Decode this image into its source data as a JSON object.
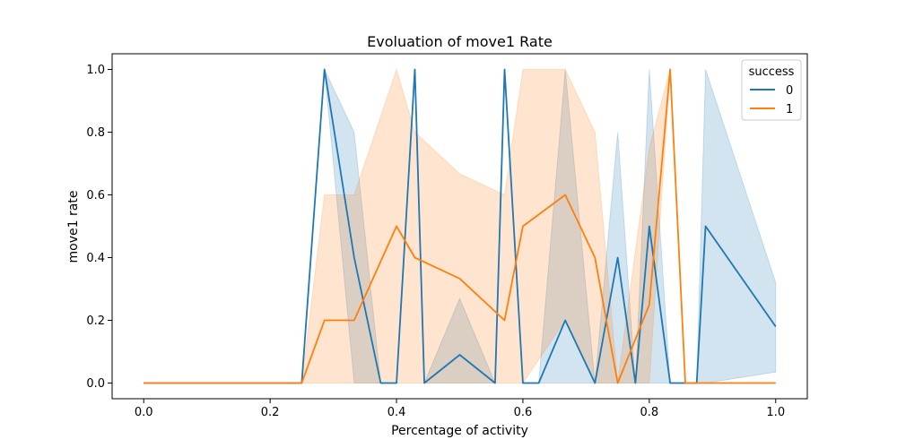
{
  "chart_data": {
    "type": "line",
    "title": "Evoluation of move1 Rate",
    "xlabel": "Percentage of activity",
    "ylabel": "move1 rate",
    "xlim": [
      -0.05,
      1.05
    ],
    "ylim": [
      -0.05,
      1.05
    ],
    "xticks": [
      "0.0",
      "0.2",
      "0.4",
      "0.6",
      "0.8",
      "1.0"
    ],
    "yticks": [
      "0.0",
      "0.2",
      "0.4",
      "0.6",
      "0.8",
      "1.0"
    ],
    "xtick_values": [
      0.0,
      0.2,
      0.4,
      0.6,
      0.8,
      1.0
    ],
    "ytick_values": [
      0.0,
      0.2,
      0.4,
      0.6,
      0.8,
      1.0
    ],
    "grid": false,
    "legend": {
      "title": "success",
      "placement": "top-right"
    },
    "series": [
      {
        "name": "0",
        "color": "#1f77b4",
        "x": [
          0.0,
          0.25,
          0.286,
          0.333,
          0.375,
          0.4,
          0.429,
          0.444,
          0.5,
          0.556,
          0.571,
          0.6,
          0.625,
          0.667,
          0.714,
          0.75,
          0.778,
          0.8,
          0.833,
          0.857,
          0.875,
          0.889,
          1.0
        ],
        "y": [
          0.0,
          0.0,
          1.0,
          0.4,
          0.0,
          0.0,
          1.0,
          0.0,
          0.09,
          0.0,
          1.0,
          0.0,
          0.0,
          0.2,
          0.0,
          0.4,
          0.0,
          0.5,
          0.0,
          0.0,
          0.0,
          0.5,
          0.18
        ],
        "ci_upper": [
          0.0,
          0.0,
          1.0,
          0.8,
          0.0,
          0.0,
          1.0,
          0.0,
          0.27,
          0.0,
          1.0,
          0.0,
          0.0,
          1.0,
          0.0,
          0.8,
          0.0,
          1.0,
          0.0,
          0.0,
          0.0,
          1.0,
          0.32
        ],
        "ci_lower": [
          0.0,
          0.0,
          1.0,
          0.0,
          0.0,
          0.0,
          1.0,
          0.0,
          0.0,
          0.0,
          1.0,
          0.0,
          0.0,
          0.0,
          0.0,
          0.0,
          0.0,
          0.0,
          0.0,
          0.0,
          0.0,
          0.0,
          0.035
        ]
      },
      {
        "name": "1",
        "color": "#ff7f0e",
        "x": [
          0.0,
          0.25,
          0.286,
          0.333,
          0.4,
          0.429,
          0.5,
          0.571,
          0.6,
          0.667,
          0.714,
          0.75,
          0.8,
          0.833,
          0.857,
          0.889,
          1.0
        ],
        "y": [
          0.0,
          0.0,
          0.2,
          0.2,
          0.5,
          0.4,
          0.333,
          0.2,
          0.5,
          0.6,
          0.4,
          0.0,
          0.25,
          1.0,
          0.0,
          0.0,
          0.0
        ],
        "ci_upper": [
          0.0,
          0.0,
          0.6,
          0.6,
          1.0,
          0.8,
          0.667,
          0.6,
          1.0,
          1.0,
          0.8,
          0.0,
          0.75,
          1.0,
          0.0,
          0.0,
          0.0
        ],
        "ci_lower": [
          0.0,
          0.0,
          0.0,
          0.0,
          0.0,
          0.0,
          0.0,
          0.0,
          0.0,
          0.2,
          0.0,
          0.0,
          0.0,
          1.0,
          0.0,
          0.0,
          0.0
        ]
      }
    ]
  }
}
